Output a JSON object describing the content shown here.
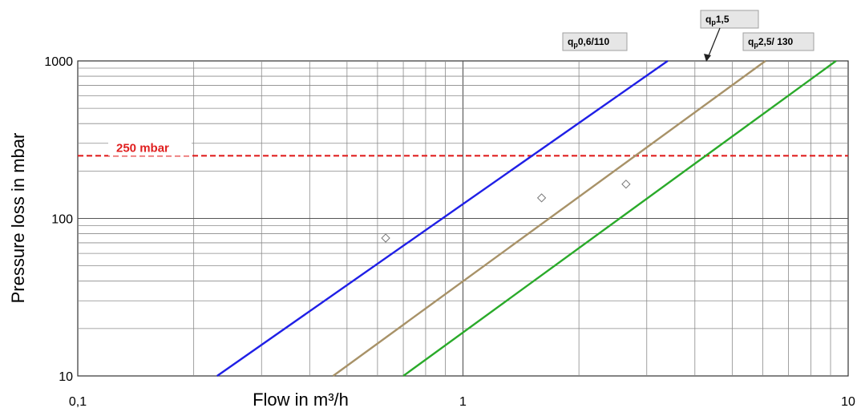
{
  "chart_data": {
    "type": "line",
    "xscale": "log",
    "yscale": "log",
    "xlim": [
      0.1,
      10
    ],
    "ylim": [
      10,
      1000
    ],
    "grid": true,
    "xlabel": "Flow in m³/h",
    "ylabel": "Pressure loss in mbar",
    "x_tick_labels": [
      {
        "value": 0.1,
        "label": "0,1"
      },
      {
        "value": 1,
        "label": "1"
      },
      {
        "value": 10,
        "label": "10"
      }
    ],
    "y_tick_labels": [
      {
        "value": 10,
        "label": "10"
      },
      {
        "value": 100,
        "label": "100"
      },
      {
        "value": 1000,
        "label": "1000"
      }
    ],
    "reference_line": {
      "value": 250,
      "label": "250 mbar",
      "color": "#e02020"
    },
    "series": [
      {
        "label_main": "q",
        "label_sub": "p",
        "label_rest": "0,6/110",
        "color": "#1f1fe6",
        "points": [
          [
            0.23,
            10
          ],
          [
            3.4,
            1000
          ]
        ],
        "marker": [
          0.63,
          75
        ]
      },
      {
        "label_main": "q",
        "label_sub": "p",
        "label_rest": "1,5",
        "color": "#a89268",
        "points": [
          [
            0.46,
            10
          ],
          [
            6.1,
            1000
          ]
        ],
        "marker": [
          1.6,
          135
        ]
      },
      {
        "label_main": "q",
        "label_sub": "p",
        "label_rest": "2,5/ 130",
        "color": "#2aaa2a",
        "points": [
          [
            0.7,
            10
          ],
          [
            9.3,
            1000
          ]
        ],
        "marker": [
          2.65,
          165
        ]
      }
    ]
  }
}
